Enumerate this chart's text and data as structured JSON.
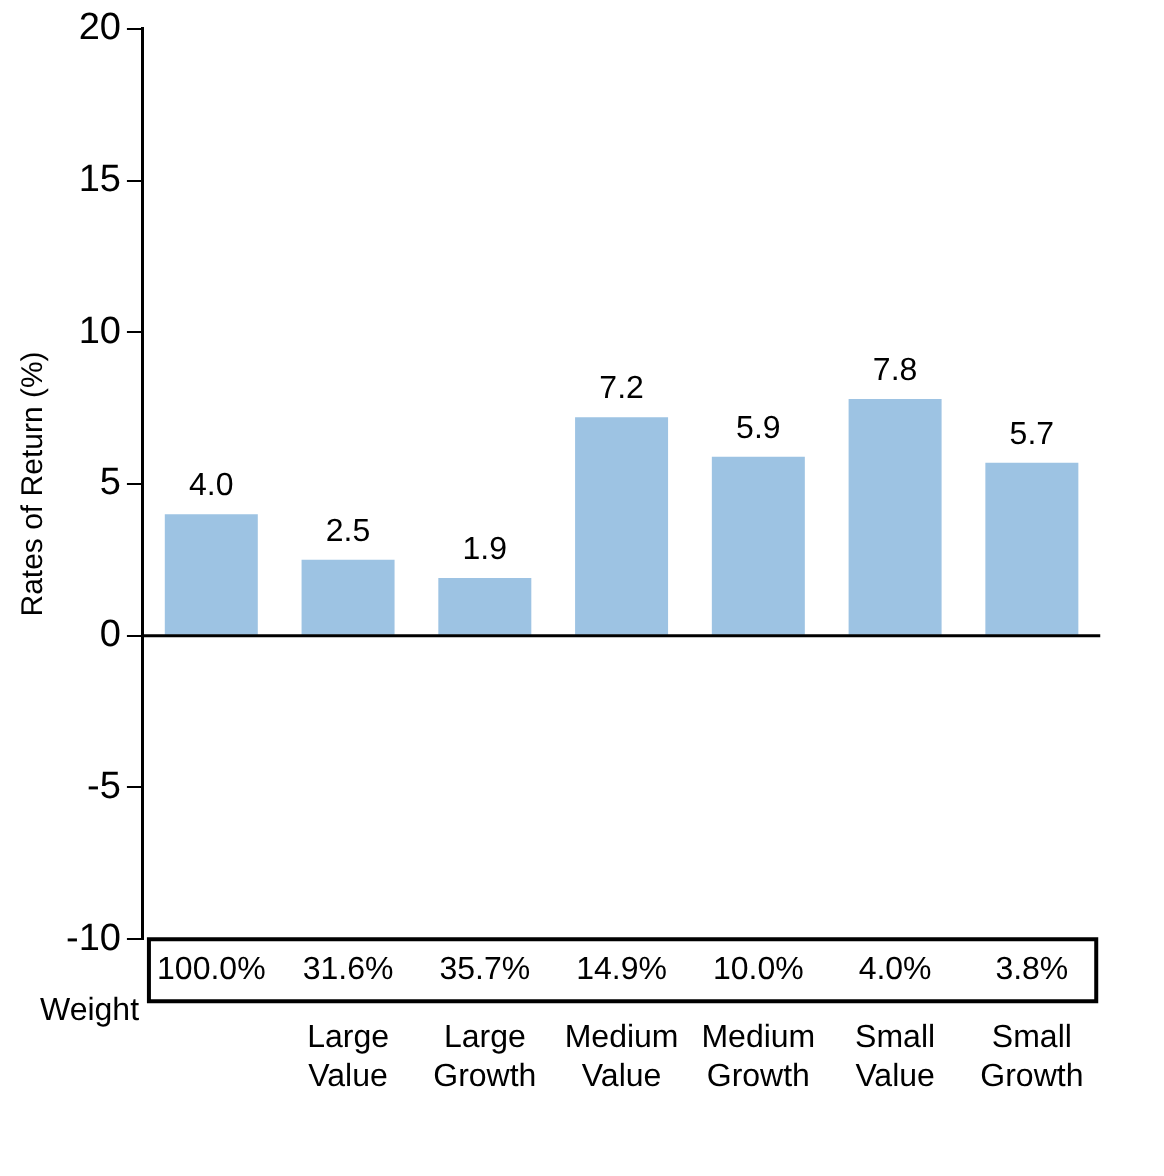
{
  "chart_data": {
    "type": "bar",
    "ylabel": "Rates of Return (%)",
    "categories": [
      null,
      "Large Value",
      "Large Growth",
      "Medium Value",
      "Medium Growth",
      "Small Value",
      "Small Growth"
    ],
    "values": [
      4.0,
      2.5,
      1.9,
      7.2,
      5.9,
      7.8,
      5.7
    ],
    "color": "#9dc3e3",
    "ylim": [
      -10,
      20
    ],
    "yticks": [
      -10,
      -5,
      0,
      5,
      10,
      15,
      20
    ],
    "value_labels": [
      "4.0",
      "2.5",
      "1.9",
      "7.2",
      "5.9",
      "7.8",
      "5.7"
    ],
    "annotations": [
      "Weight",
      "100.0%",
      "31.6%",
      "35.7%",
      "14.9%",
      "10.0%",
      "4.0%",
      "3.8%"
    ]
  }
}
